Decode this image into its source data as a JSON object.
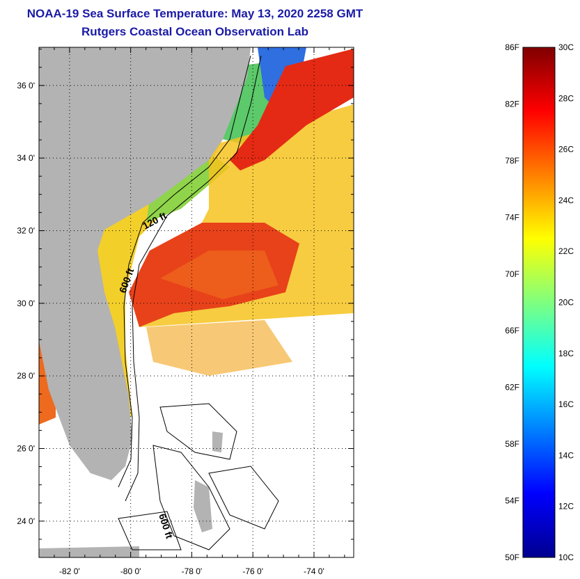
{
  "title": {
    "line1": "NOAA-19 Sea Surface Temperature:  May 13, 2020 2258 GMT",
    "line2": "Rutgers Coastal Ocean Observation Lab"
  },
  "map": {
    "lat_ticks": [
      {
        "value": 36,
        "label": "36 0'"
      },
      {
        "value": 34,
        "label": "34 0'"
      },
      {
        "value": 32,
        "label": "32 0'"
      },
      {
        "value": 30,
        "label": "30 0'"
      },
      {
        "value": 28,
        "label": "28 0'"
      },
      {
        "value": 26,
        "label": "26 0'"
      },
      {
        "value": 24,
        "label": "24 0'"
      }
    ],
    "lon_ticks": [
      {
        "value": -82,
        "label": "-82 0'"
      },
      {
        "value": -80,
        "label": "-80 0'"
      },
      {
        "value": -78,
        "label": "-78 0'"
      },
      {
        "value": -76,
        "label": "-76 0'"
      },
      {
        "value": -74,
        "label": "-74 0'"
      }
    ],
    "lat_range": [
      23,
      37.05
    ],
    "lon_range": [
      -83,
      -72.7
    ],
    "contour_labels": [
      "120 ft",
      "600 ft",
      "600 ft"
    ],
    "land_color": "#b3b3b3",
    "water_no_data_color": "#ffffff"
  },
  "colorbar": {
    "fahrenheit_labels": [
      "86F",
      "82F",
      "78F",
      "74F",
      "70F",
      "66F",
      "62F",
      "58F",
      "54F",
      "50F"
    ],
    "celsius_labels": [
      "30C",
      "28C",
      "26C",
      "24C",
      "22C",
      "20C",
      "18C",
      "16C",
      "14C",
      "12C",
      "10C"
    ],
    "range_c": [
      10,
      30
    ],
    "colormap": "jet"
  }
}
